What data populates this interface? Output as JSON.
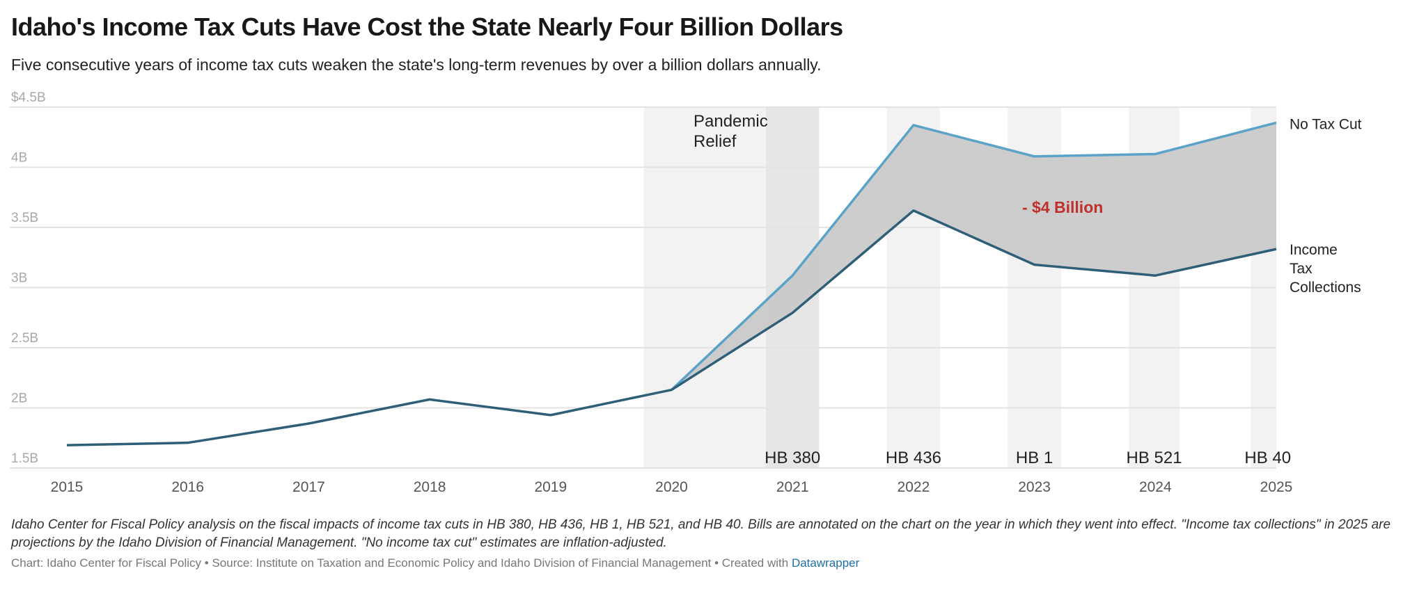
{
  "chart_data": {
    "type": "area",
    "title": "Idaho's Income Tax Cuts Have Cost the State Nearly Four Billion Dollars",
    "subtitle": "Five consecutive years of income tax cuts weaken the state's long-term revenues by over a billion dollars annually.",
    "x": [
      2015,
      2016,
      2017,
      2018,
      2019,
      2020,
      2021,
      2022,
      2023,
      2024,
      2025
    ],
    "ylim": [
      1.5,
      4.5
    ],
    "yticks": [
      1.5,
      2,
      2.5,
      3,
      3.5,
      4,
      4.5
    ],
    "ytick_labels": [
      "1.5B",
      "2B",
      "2.5B",
      "3B",
      "3.5B",
      "4B",
      "$4.5B"
    ],
    "grid": true,
    "series": [
      {
        "name": "No Tax Cut",
        "color": "#5aa2c8",
        "values": [
          null,
          null,
          null,
          null,
          null,
          2.15,
          3.1,
          4.35,
          4.09,
          4.11,
          4.37
        ]
      },
      {
        "name": "Income Tax Collections",
        "label_lines": [
          "Income",
          "Tax",
          "Collections"
        ],
        "color": "#2f5f78",
        "values": [
          1.69,
          1.71,
          1.87,
          2.07,
          1.94,
          2.15,
          2.79,
          3.64,
          3.19,
          3.1,
          3.32
        ]
      }
    ],
    "gap_fill_color": "#c8c8c8",
    "gap_annotation": {
      "text": "- $4 Billion",
      "color": "#c0302b",
      "x": 2023,
      "y": 3.7
    },
    "highlight_ranges": [
      {
        "label": "Pandemic Relief",
        "from": 2019.77,
        "to": 2021.22,
        "shade": "#f2f2f2"
      },
      {
        "label": "HB 380",
        "from": 2020.78,
        "to": 2021.22,
        "shade": "#e6e6e6"
      },
      {
        "label": "HB 436",
        "from": 2021.78,
        "to": 2022.22,
        "shade": "#f2f2f2"
      },
      {
        "label": "HB 1",
        "from": 2022.78,
        "to": 2023.22,
        "shade": "#f2f2f2"
      },
      {
        "label": "HB 521",
        "from": 2023.78,
        "to": 2024.2,
        "shade": "#f2f2f2"
      },
      {
        "label": "HB 40",
        "from": 2024.79,
        "to": 2025.0,
        "shade": "#f2f2f2"
      }
    ]
  },
  "notes": "Idaho Center for Fiscal Policy analysis on the fiscal impacts of income tax cuts in HB 380, HB 436, HB 1, HB 521, and HB 40. Bills are annotated on the chart on the year in which they went into effect. \"Income tax collections\" in 2025 are projections by the Idaho Division of Financial Management. \"No income tax cut\" estimates are inflation-adjusted.",
  "credit": {
    "text": "Chart: Idaho Center for Fiscal Policy • Source: Institute on Taxation and Economic Policy and Idaho Division of Financial Management • Created with ",
    "link": "Datawrapper"
  }
}
